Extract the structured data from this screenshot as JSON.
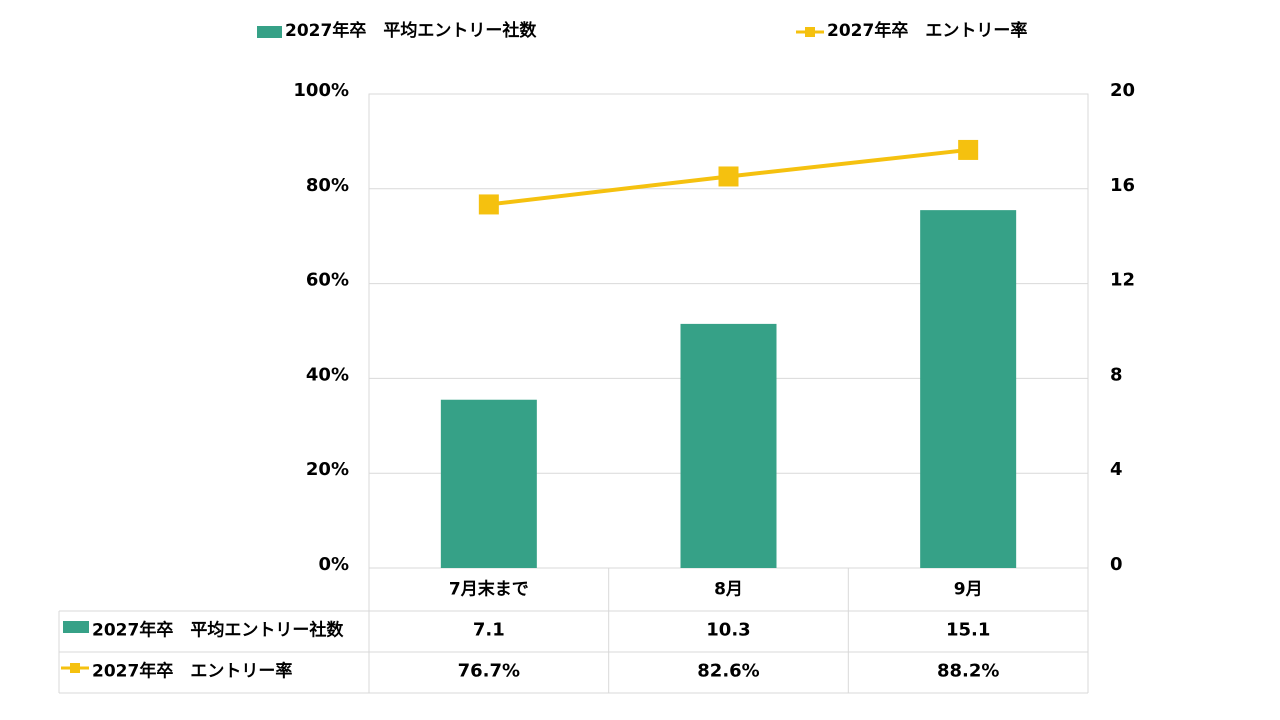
{
  "chart_data": {
    "type": "bar",
    "categories": [
      "7月末まで",
      "8月",
      "9月"
    ],
    "series": [
      {
        "name": "2027年卒　平均エントリー社数",
        "type": "bar",
        "axis": "right",
        "color": "#36a187",
        "values": [
          7.1,
          10.3,
          15.1
        ],
        "table_labels": [
          "7.1",
          "10.3",
          "15.1"
        ]
      },
      {
        "name": "2027年卒　エントリー率",
        "type": "line",
        "axis": "left",
        "color": "#f5c10f",
        "values": [
          76.7,
          82.6,
          88.2
        ],
        "table_labels": [
          "76.7%",
          "82.6%",
          "88.2%"
        ]
      }
    ],
    "y_left": {
      "range": [
        0,
        100
      ],
      "ticks": [
        0,
        20,
        40,
        60,
        80,
        100
      ],
      "tick_labels": [
        "0%",
        "20%",
        "40%",
        "60%",
        "80%",
        "100%"
      ]
    },
    "y_right": {
      "range": [
        0,
        20
      ],
      "ticks": [
        0,
        4,
        8,
        12,
        16,
        20
      ],
      "tick_labels": [
        "0",
        "4",
        "8",
        "12",
        "16",
        "20"
      ]
    },
    "legend_position": "top",
    "gridlines": true,
    "data_table": true
  }
}
